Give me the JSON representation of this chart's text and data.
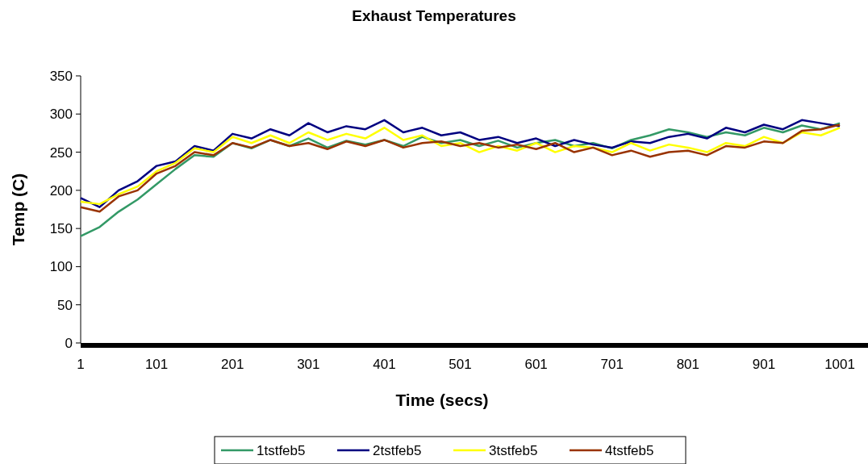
{
  "chart_data": {
    "type": "line",
    "title": "Exhaust Temperatures",
    "xlabel": "Time (secs)",
    "ylabel": "Temp (C)",
    "x": [
      1,
      26,
      51,
      76,
      101,
      126,
      151,
      176,
      201,
      226,
      251,
      276,
      301,
      326,
      351,
      376,
      401,
      426,
      451,
      476,
      501,
      526,
      551,
      576,
      601,
      626,
      651,
      676,
      701,
      726,
      751,
      776,
      801,
      826,
      851,
      876,
      901,
      926,
      951,
      976,
      1001
    ],
    "xlim": [
      1,
      1036
    ],
    "xticks": [
      1,
      101,
      201,
      301,
      401,
      501,
      601,
      701,
      801,
      901,
      1001
    ],
    "ylim": [
      0,
      350
    ],
    "yticks": [
      0,
      50,
      100,
      150,
      200,
      250,
      300,
      350
    ],
    "grid": false,
    "legend": "bottom",
    "marker": "none",
    "line_style": "solid",
    "series": [
      {
        "name": "1tstfeb5",
        "color": "#339966",
        "values": [
          140,
          152,
          172,
          188,
          208,
          228,
          246,
          244,
          262,
          255,
          266,
          258,
          268,
          256,
          265,
          260,
          266,
          258,
          270,
          262,
          266,
          258,
          265,
          256,
          262,
          266,
          258,
          262,
          255,
          266,
          272,
          280,
          276,
          270,
          276,
          272,
          282,
          276,
          285,
          280,
          288
        ]
      },
      {
        "name": "2tstfeb5",
        "color": "#000080",
        "values": [
          190,
          178,
          200,
          212,
          232,
          238,
          258,
          252,
          274,
          268,
          280,
          272,
          288,
          276,
          284,
          280,
          292,
          276,
          282,
          272,
          276,
          266,
          270,
          262,
          268,
          258,
          266,
          260,
          256,
          264,
          262,
          270,
          274,
          268,
          282,
          276,
          286,
          280,
          292,
          288,
          284
        ]
      },
      {
        "name": "3tstfeb5",
        "color": "#ffff00",
        "values": [
          185,
          182,
          195,
          205,
          225,
          236,
          255,
          250,
          270,
          262,
          272,
          262,
          276,
          266,
          274,
          268,
          282,
          266,
          272,
          258,
          262,
          250,
          258,
          252,
          262,
          250,
          258,
          256,
          250,
          262,
          252,
          260,
          256,
          250,
          262,
          258,
          270,
          262,
          276,
          272,
          282
        ]
      },
      {
        "name": "4tstfeb5",
        "color": "#993300",
        "values": [
          178,
          172,
          192,
          200,
          222,
          232,
          250,
          246,
          262,
          256,
          266,
          258,
          262,
          254,
          264,
          258,
          266,
          256,
          262,
          264,
          258,
          262,
          256,
          260,
          254,
          262,
          250,
          256,
          246,
          252,
          244,
          250,
          252,
          246,
          258,
          256,
          264,
          262,
          278,
          280,
          286
        ]
      }
    ]
  }
}
